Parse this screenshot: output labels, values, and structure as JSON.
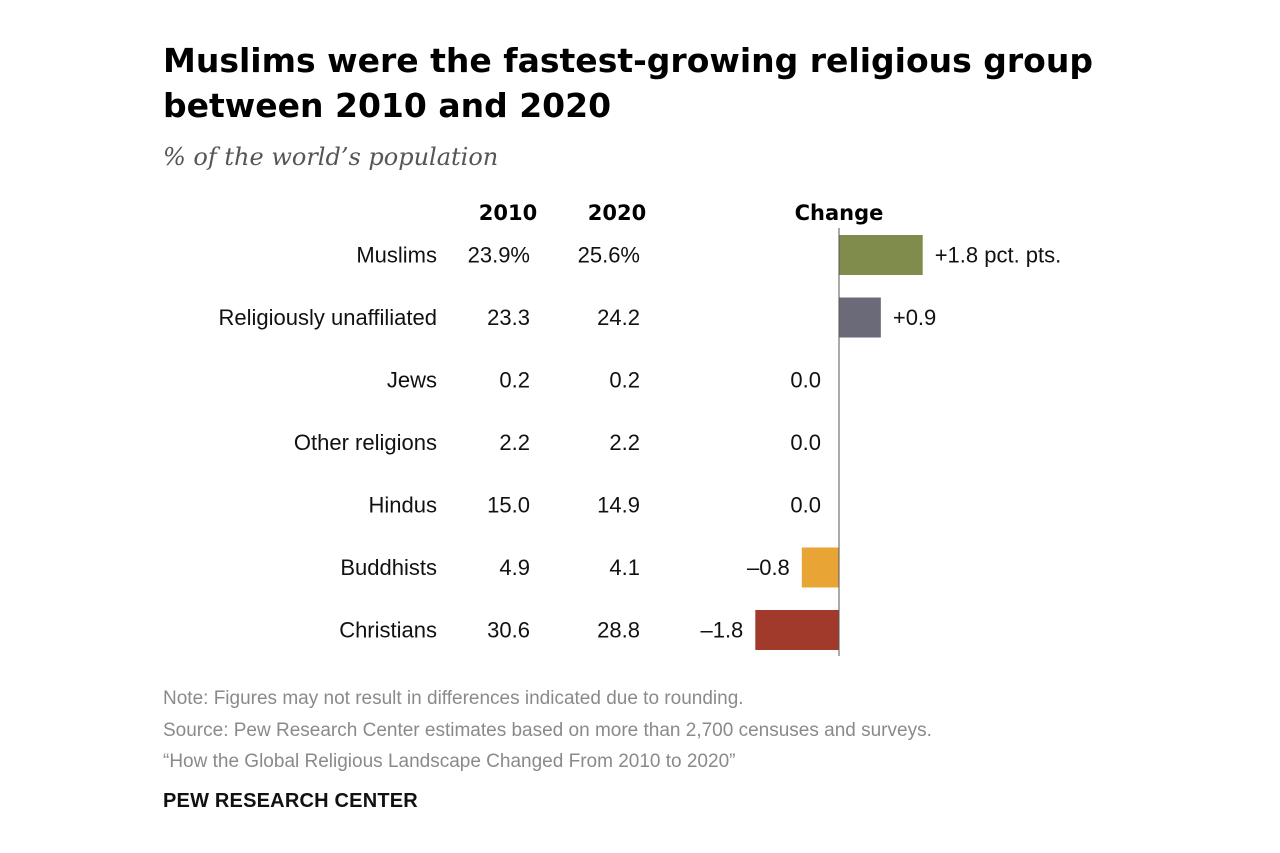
{
  "chart_data": {
    "type": "bar",
    "title": "Muslims were the fastest-growing religious group between 2010 and 2020",
    "subtitle": "% of the world’s population",
    "columns": {
      "col1": "2010",
      "col2": "2020",
      "change": "Change"
    },
    "rows": [
      {
        "name": "Muslims",
        "v2010": "23.9%",
        "v2020": "25.6%",
        "change": 1.8,
        "change_label": "+1.8 pct. pts.",
        "color": "#7f8c4b"
      },
      {
        "name": "Religiously unaffiliated",
        "v2010": "23.3",
        "v2020": "24.2",
        "change": 0.9,
        "change_label": "+0.9",
        "color": "#6b6a78"
      },
      {
        "name": "Jews",
        "v2010": "0.2",
        "v2020": "0.2",
        "change": 0.0,
        "change_label": "0.0",
        "color": "#999999"
      },
      {
        "name": "Other religions",
        "v2010": "2.2",
        "v2020": "2.2",
        "change": 0.0,
        "change_label": "0.0",
        "color": "#999999"
      },
      {
        "name": "Hindus",
        "v2010": "15.0",
        "v2020": "14.9",
        "change": 0.0,
        "change_label": "0.0",
        "color": "#999999"
      },
      {
        "name": "Buddhists",
        "v2010": "4.9",
        "v2020": "4.1",
        "change": -0.8,
        "change_label": "–0.8",
        "color": "#e8a435"
      },
      {
        "name": "Christians",
        "v2010": "30.6",
        "v2020": "28.8",
        "change": -1.8,
        "change_label": "–1.8",
        "color": "#a23a2b"
      }
    ]
  },
  "notes": {
    "note": "Note: Figures may not result in differences indicated due to rounding.",
    "source": "Source: Pew Research Center estimates based on more than 2,700 censuses and surveys.",
    "report": "“How the Global Religious Landscape Changed From 2010 to 2020”"
  },
  "brand": "PEW RESEARCH CENTER"
}
